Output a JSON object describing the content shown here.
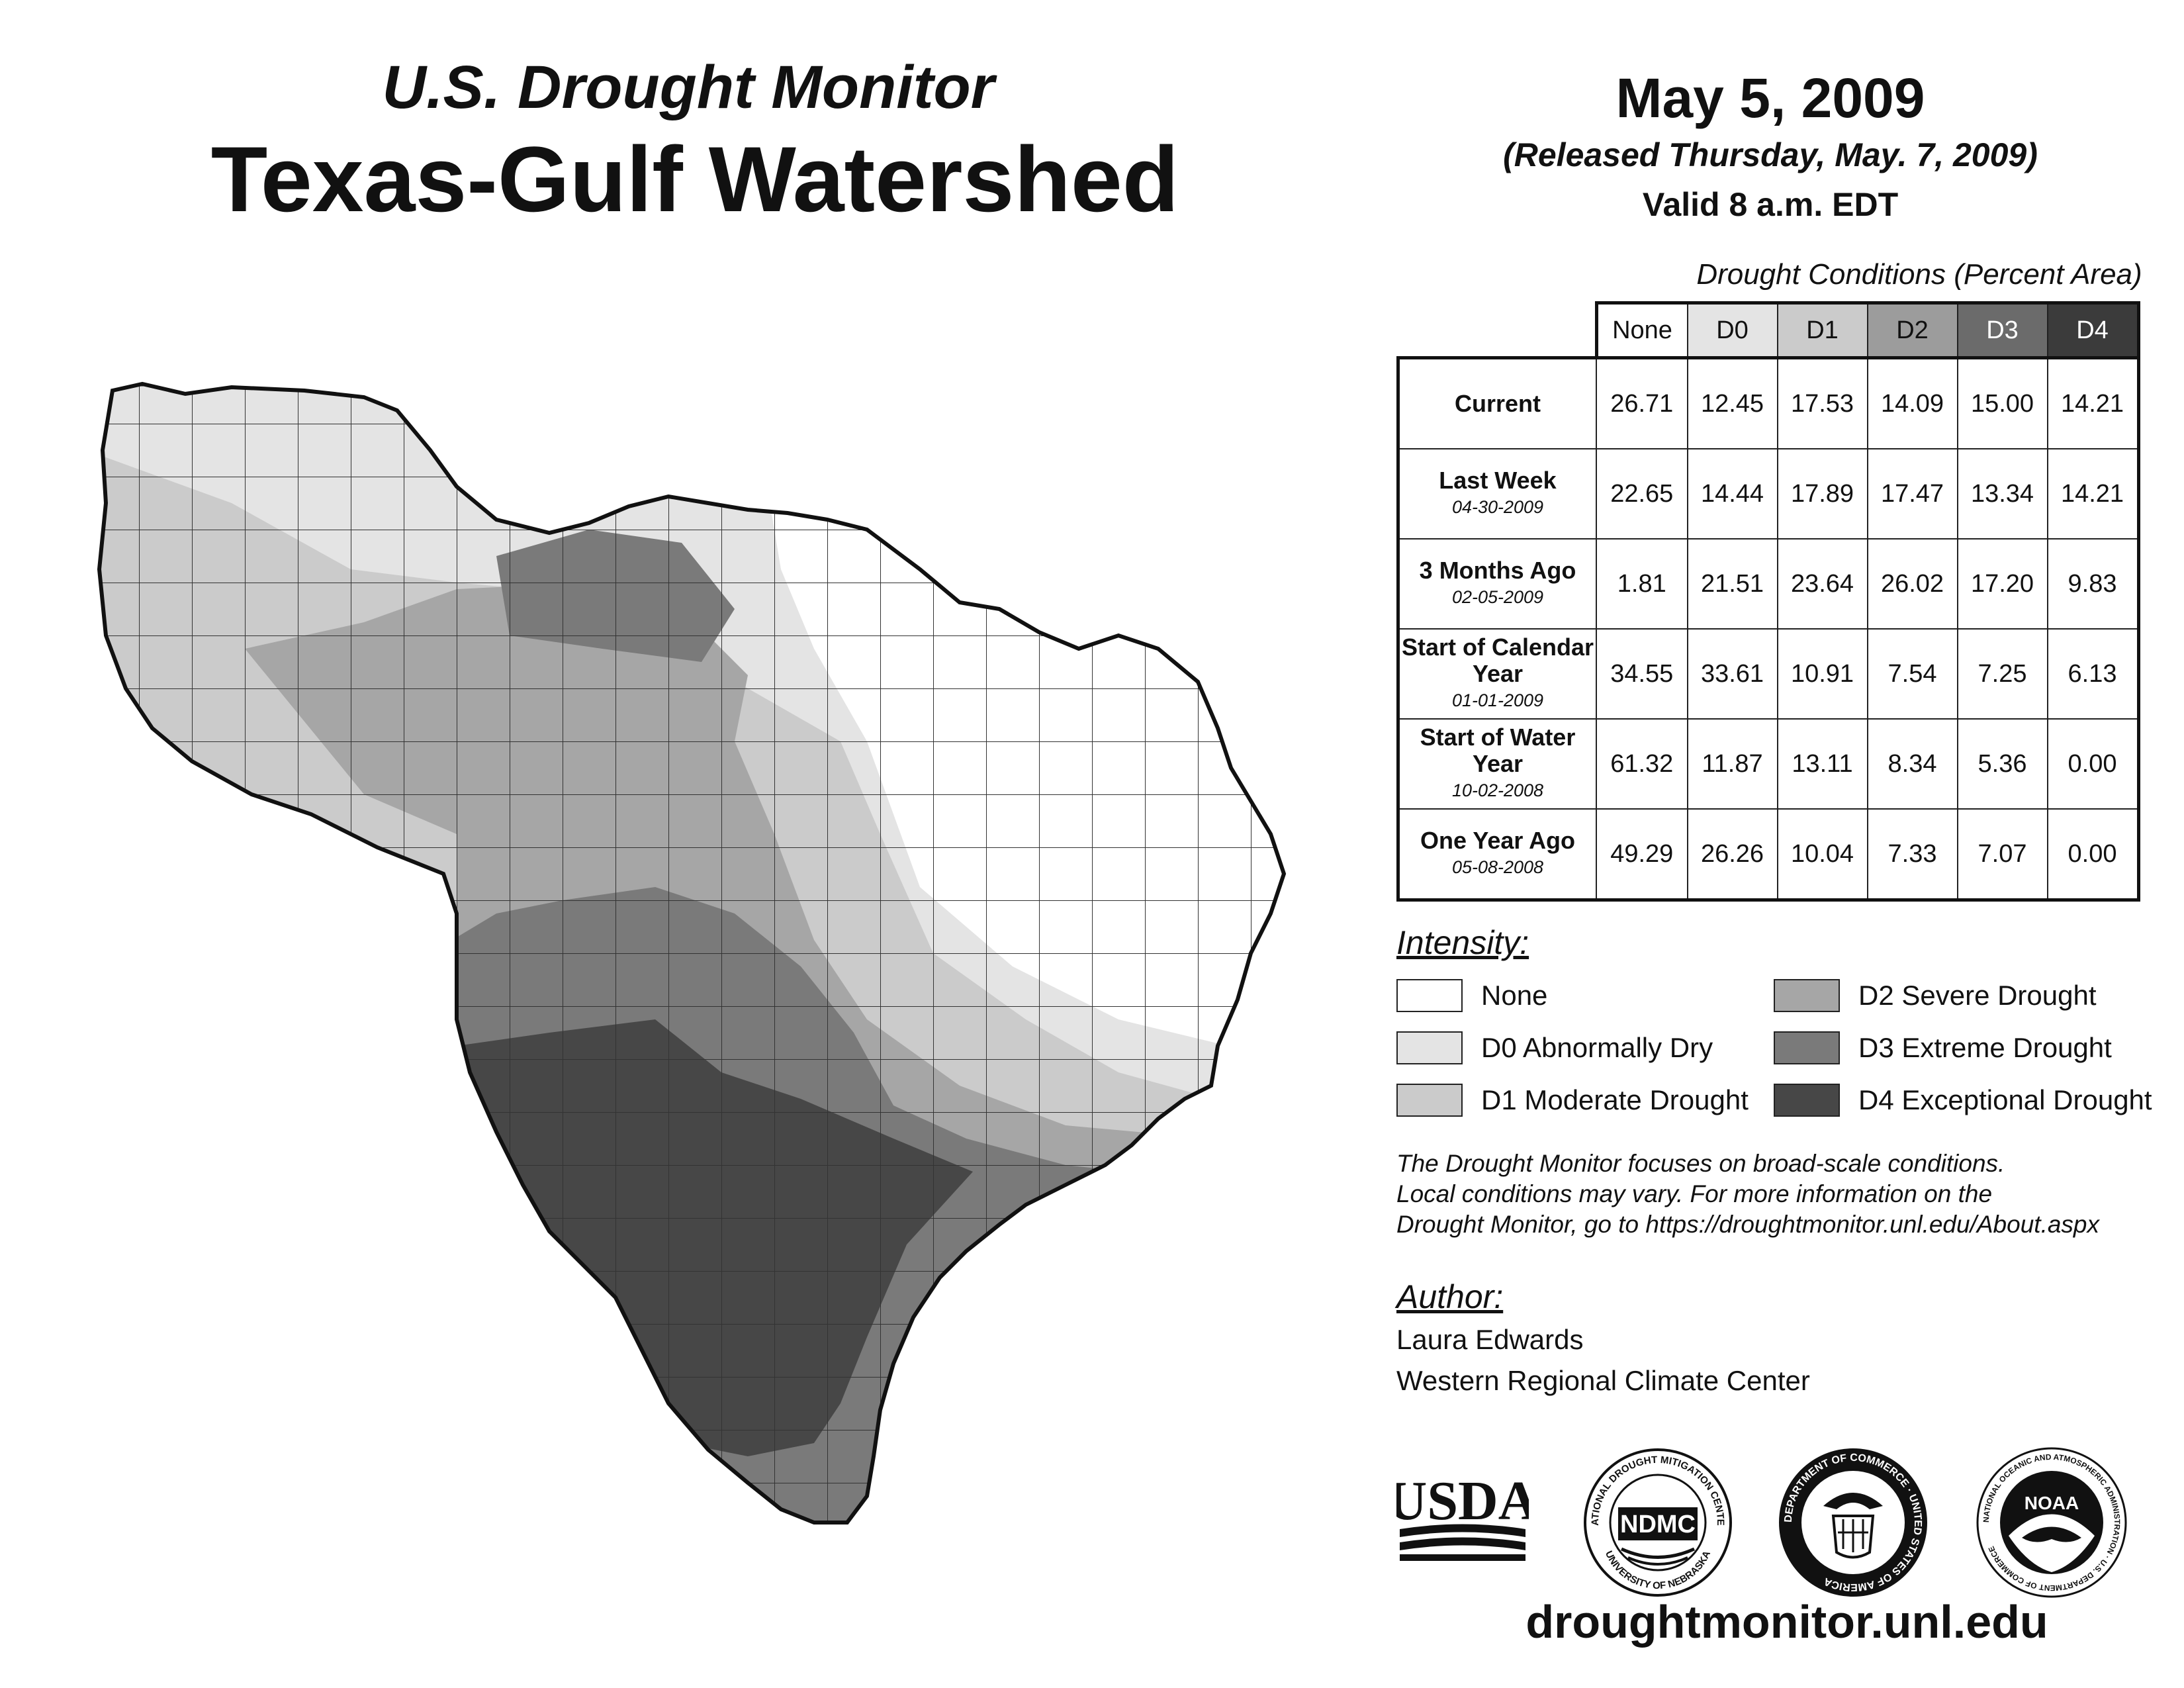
{
  "header": {
    "subtitle": "U.S. Drought Monitor",
    "title": "Texas-Gulf Watershed",
    "date": "May 5, 2009",
    "released": "(Released Thursday, May. 7, 2009)",
    "valid": "Valid 8 a.m. EDT"
  },
  "table": {
    "caption": "Drought Conditions (Percent Area)",
    "columns": [
      "None",
      "D0",
      "D1",
      "D2",
      "D3",
      "D4"
    ],
    "rows": [
      {
        "label": "Current",
        "date": "",
        "values": [
          "26.71",
          "12.45",
          "17.53",
          "14.09",
          "15.00",
          "14.21"
        ]
      },
      {
        "label": "Last Week",
        "date": "04-30-2009",
        "values": [
          "22.65",
          "14.44",
          "17.89",
          "17.47",
          "13.34",
          "14.21"
        ]
      },
      {
        "label": "3 Months Ago",
        "date": "02-05-2009",
        "values": [
          "1.81",
          "21.51",
          "23.64",
          "26.02",
          "17.20",
          "9.83"
        ]
      },
      {
        "label": "Start of Calendar Year",
        "date": "01-01-2009",
        "values": [
          "34.55",
          "33.61",
          "10.91",
          "7.54",
          "7.25",
          "6.13"
        ]
      },
      {
        "label": "Start of Water Year",
        "date": "10-02-2008",
        "values": [
          "61.32",
          "11.87",
          "13.11",
          "8.34",
          "5.36",
          "0.00"
        ]
      },
      {
        "label": "One Year Ago",
        "date": "05-08-2008",
        "values": [
          "49.29",
          "26.26",
          "10.04",
          "7.33",
          "7.07",
          "0.00"
        ]
      }
    ]
  },
  "legend": {
    "title": "Intensity:",
    "items": [
      {
        "label": "None",
        "color": "#ffffff"
      },
      {
        "label": "D0 Abnormally Dry",
        "color": "#e4e4e4"
      },
      {
        "label": "D1 Moderate Drought",
        "color": "#cbcbcb"
      },
      {
        "label": "D2 Severe Drought",
        "color": "#a6a6a6"
      },
      {
        "label": "D3 Extreme Drought",
        "color": "#7a7a7a"
      },
      {
        "label": "D4 Exceptional Drought",
        "color": "#474747"
      }
    ]
  },
  "note": {
    "line1": "The Drought Monitor focuses on broad-scale conditions.",
    "line2": "Local conditions may vary. For more information on the",
    "line3": "Drought Monitor, go to https://droughtmonitor.unl.edu/About.aspx"
  },
  "author": {
    "title": "Author:",
    "name": "Laura Edwards",
    "org": "Western Regional Climate Center"
  },
  "logos": {
    "usda": "USDA",
    "ndmc": "NDMC",
    "ndmc_ring_top": "NATIONAL DROUGHT MITIGATION CENTER",
    "ndmc_ring_bottom": "UNIVERSITY OF NEBRASKA",
    "commerce_ring": "DEPARTMENT OF COMMERCE · UNITED STATES OF AMERICA",
    "noaa": "NOAA",
    "noaa_ring": "NATIONAL OCEANIC AND ATMOSPHERIC ADMINISTRATION · U.S. DEPARTMENT OF COMMERCE"
  },
  "website": "droughtmonitor.unl.edu"
}
